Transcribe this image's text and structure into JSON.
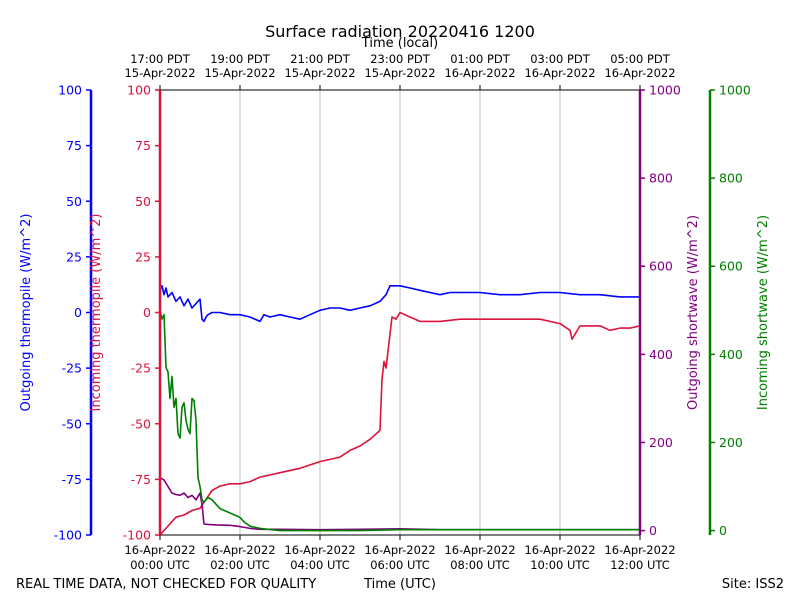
{
  "chart_data": {
    "type": "line",
    "title": "Surface radiation 20220416 1200",
    "top_axis_label": "Time (local)",
    "xlabel": "Time (UTC)",
    "footer_left": "REAL TIME DATA, NOT CHECKED FOR QUALITY",
    "footer_right": "Site: ISS2",
    "x_range_hours": [
      0,
      12
    ],
    "grid": "vertical lines at bottom tick positions",
    "bottom_ticks": [
      {
        "h": 0,
        "line1": "16-Apr-2022",
        "line2": "00:00 UTC"
      },
      {
        "h": 2,
        "line1": "16-Apr-2022",
        "line2": "02:00 UTC"
      },
      {
        "h": 4,
        "line1": "16-Apr-2022",
        "line2": "04:00 UTC"
      },
      {
        "h": 6,
        "line1": "16-Apr-2022",
        "line2": "06:00 UTC"
      },
      {
        "h": 8,
        "line1": "16-Apr-2022",
        "line2": "08:00 UTC"
      },
      {
        "h": 10,
        "line1": "16-Apr-2022",
        "line2": "10:00 UTC"
      },
      {
        "h": 12,
        "line1": "16-Apr-2022",
        "line2": "12:00 UTC"
      }
    ],
    "top_ticks": [
      {
        "h": 0,
        "line1": "17:00 PDT",
        "line2": "15-Apr-2022"
      },
      {
        "h": 2,
        "line1": "19:00 PDT",
        "line2": "15-Apr-2022"
      },
      {
        "h": 4,
        "line1": "21:00 PDT",
        "line2": "15-Apr-2022"
      },
      {
        "h": 6,
        "line1": "23:00 PDT",
        "line2": "15-Apr-2022"
      },
      {
        "h": 8,
        "line1": "01:00 PDT",
        "line2": "16-Apr-2022"
      },
      {
        "h": 10,
        "line1": "03:00 PDT",
        "line2": "16-Apr-2022"
      },
      {
        "h": 12,
        "line1": "05:00 PDT",
        "line2": "16-Apr-2022"
      }
    ],
    "y_axes": [
      {
        "id": "out_thermo",
        "label": "Outgoing thermopile (W/m^2)",
        "color": "#0000ff",
        "range": [
          -100,
          100
        ],
        "ticks": [
          -100,
          -75,
          -50,
          -25,
          0,
          25,
          50,
          75,
          100
        ]
      },
      {
        "id": "in_thermo",
        "label": "Incoming thermopile (W/m^2)",
        "color": "#dc143c",
        "range": [
          -100,
          100
        ],
        "ticks": [
          -100,
          -75,
          -50,
          -25,
          0,
          25,
          50,
          75,
          100
        ]
      },
      {
        "id": "out_sw",
        "label": "Outgoing shortwave (W/m^2)",
        "color": "#800080",
        "range": [
          -10,
          1000
        ],
        "ticks": [
          0,
          200,
          400,
          600,
          800,
          1000
        ]
      },
      {
        "id": "in_sw",
        "label": "Incoming shortwave (W/m^2)",
        "color": "#008000",
        "range": [
          -10,
          1000
        ],
        "ticks": [
          0,
          200,
          400,
          600,
          800,
          1000
        ]
      }
    ],
    "series": [
      {
        "axis": "out_thermo",
        "color": "#0000ff",
        "x": [
          0,
          0.05,
          0.1,
          0.15,
          0.2,
          0.3,
          0.4,
          0.5,
          0.6,
          0.7,
          0.8,
          0.9,
          1.0,
          1.05,
          1.1,
          1.15,
          1.2,
          1.3,
          1.5,
          1.75,
          2.0,
          2.25,
          2.5,
          2.6,
          2.75,
          3.0,
          3.25,
          3.5,
          3.75,
          4.0,
          4.25,
          4.5,
          4.75,
          5.0,
          5.25,
          5.5,
          5.65,
          5.75,
          6.0,
          6.25,
          6.5,
          6.75,
          7.0,
          7.25,
          7.5,
          8.0,
          8.5,
          9.0,
          9.5,
          10.0,
          10.5,
          11.0,
          11.5,
          12.0
        ],
        "y": [
          10,
          12,
          8,
          11,
          7,
          9,
          5,
          7,
          3,
          6,
          2,
          4,
          6,
          -3,
          -4,
          -2,
          -1,
          0,
          0,
          -1,
          -1,
          -2,
          -4,
          -1,
          -2,
          -1,
          -2,
          -3,
          -1,
          1,
          2,
          2,
          1,
          2,
          3,
          5,
          8,
          12,
          12,
          11,
          10,
          9,
          8,
          9,
          9,
          9,
          8,
          8,
          9,
          9,
          8,
          8,
          7,
          7
        ]
      },
      {
        "axis": "in_thermo",
        "color": "#dc143c",
        "x": [
          0,
          0.1,
          0.2,
          0.3,
          0.4,
          0.6,
          0.8,
          1.0,
          1.15,
          1.3,
          1.4,
          1.5,
          1.75,
          2.0,
          2.25,
          2.5,
          3.0,
          3.5,
          4.0,
          4.5,
          4.75,
          5.0,
          5.25,
          5.5,
          5.55,
          5.6,
          5.65,
          5.8,
          5.9,
          6.0,
          6.25,
          6.5,
          7.0,
          7.5,
          8.0,
          9.0,
          9.5,
          10.0,
          10.25,
          10.3,
          10.5,
          10.75,
          11.0,
          11.25,
          11.5,
          11.75,
          12.0
        ],
        "y": [
          -100,
          -98,
          -96,
          -94,
          -92,
          -91,
          -89,
          -88,
          -84,
          -80,
          -79,
          -78,
          -77,
          -77,
          -76,
          -74,
          -72,
          -70,
          -67,
          -65,
          -62,
          -60,
          -57,
          -53,
          -30,
          -22,
          -25,
          -2,
          -3,
          0,
          -2,
          -4,
          -4,
          -3,
          -3,
          -3,
          -3,
          -5,
          -8,
          -12,
          -6,
          -6,
          -6,
          -8,
          -7,
          -7,
          -6
        ]
      },
      {
        "axis": "out_sw",
        "color": "#800080",
        "x": [
          0,
          0.1,
          0.2,
          0.3,
          0.4,
          0.5,
          0.6,
          0.7,
          0.8,
          0.9,
          1.0,
          1.05,
          1.1,
          1.2,
          1.4,
          1.75,
          2.0,
          2.25,
          2.5,
          3.0,
          4.0,
          5.0,
          6.0,
          7.0,
          8.0,
          10.0,
          12.0
        ],
        "y": [
          120,
          115,
          100,
          85,
          82,
          80,
          85,
          75,
          80,
          70,
          85,
          60,
          15,
          14,
          13,
          12,
          9,
          5,
          3,
          3,
          2,
          3,
          4,
          2,
          2,
          2,
          2
        ]
      },
      {
        "axis": "in_sw",
        "color": "#008000",
        "x": [
          0,
          0.05,
          0.1,
          0.15,
          0.2,
          0.25,
          0.3,
          0.35,
          0.4,
          0.45,
          0.5,
          0.55,
          0.6,
          0.65,
          0.7,
          0.75,
          0.8,
          0.85,
          0.9,
          0.95,
          1.0,
          1.05,
          1.1,
          1.15,
          1.2,
          1.3,
          1.5,
          1.75,
          2.0,
          2.1,
          2.25,
          2.5,
          3.0,
          4.0,
          5.0,
          6.0,
          7.0,
          8.0,
          10.0,
          12.0
        ],
        "y": [
          500,
          480,
          490,
          370,
          360,
          300,
          350,
          280,
          300,
          220,
          210,
          280,
          290,
          250,
          230,
          220,
          300,
          295,
          250,
          120,
          100,
          70,
          65,
          70,
          75,
          70,
          50,
          40,
          30,
          20,
          10,
          5,
          0,
          0,
          0,
          2,
          2,
          2,
          2,
          2
        ]
      }
    ]
  }
}
